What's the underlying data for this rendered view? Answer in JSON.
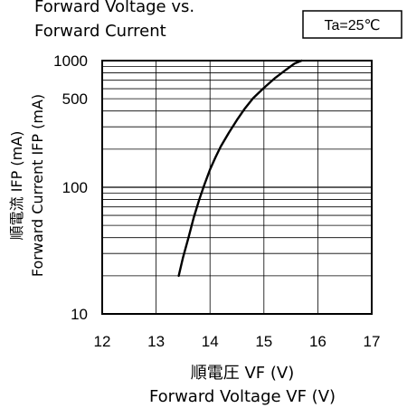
{
  "chart_data": {
    "type": "line",
    "title_lines": [
      "Forward Voltage vs.",
      "Forward Current"
    ],
    "condition_label": "Ta=25℃",
    "xlabel_jp": "順電圧 VF (V)",
    "xlabel_en": "Forward Voltage VF (V)",
    "ylabel_jp": "順電流 IFP (mA)",
    "ylabel_en": "Forward Current IFP (mA)",
    "xlim": [
      12,
      17
    ],
    "ylim": [
      10,
      1000
    ],
    "yscale": "log",
    "x_ticks": [
      "12",
      "13",
      "14",
      "15",
      "16",
      "17"
    ],
    "y_ticks": [
      "10",
      "100",
      "500",
      "1000"
    ],
    "grid": true,
    "series": [
      {
        "x": [
          13.42,
          13.5,
          13.6,
          13.7,
          13.8,
          13.9,
          14.0,
          14.1,
          14.2,
          14.35,
          14.5,
          14.65,
          14.8,
          15.0,
          15.2,
          15.4,
          15.57,
          15.7
        ],
        "y": [
          20,
          28,
          40,
          58,
          80,
          106,
          138,
          172,
          210,
          270,
          340,
          420,
          505,
          610,
          725,
          840,
          950,
          1000
        ]
      }
    ]
  }
}
